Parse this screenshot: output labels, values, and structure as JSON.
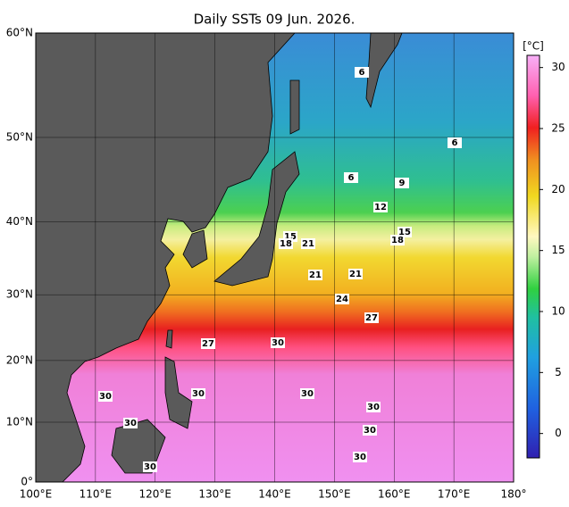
{
  "map": {
    "title": "Daily SSTs 09 Jun. 2026.",
    "xlim": [
      100,
      180
    ],
    "ylim": [
      0,
      60
    ],
    "xticks": [
      {
        "value": 100,
        "label": "100°E"
      },
      {
        "value": 110,
        "label": "110°E"
      },
      {
        "value": 120,
        "label": "120°E"
      },
      {
        "value": 130,
        "label": "130°E"
      },
      {
        "value": 140,
        "label": "140°E"
      },
      {
        "value": 150,
        "label": "150°E"
      },
      {
        "value": 160,
        "label": "160°E"
      },
      {
        "value": 170,
        "label": "170°E"
      },
      {
        "value": 180,
        "label": "180°"
      }
    ],
    "yticks": [
      {
        "value": 0,
        "label": "0°"
      },
      {
        "value": 10,
        "label": "10°N"
      },
      {
        "value": 20,
        "label": "20°N"
      },
      {
        "value": 30,
        "label": "30°N"
      },
      {
        "value": 40,
        "label": "40°N"
      },
      {
        "value": 50,
        "label": "50°N"
      },
      {
        "value": 60,
        "label": "60°N"
      }
    ],
    "grid": true,
    "colorbar": {
      "label": "[°C]",
      "clim": [
        -2,
        31
      ],
      "ticks": [
        0,
        5,
        10,
        15,
        20,
        25,
        30
      ]
    },
    "contour_labels": [
      6,
      6,
      6,
      9,
      12,
      15,
      15,
      18,
      18,
      21,
      21,
      21,
      24,
      27,
      27,
      30,
      30,
      30,
      30,
      30,
      30,
      30,
      30,
      30
    ]
  }
}
